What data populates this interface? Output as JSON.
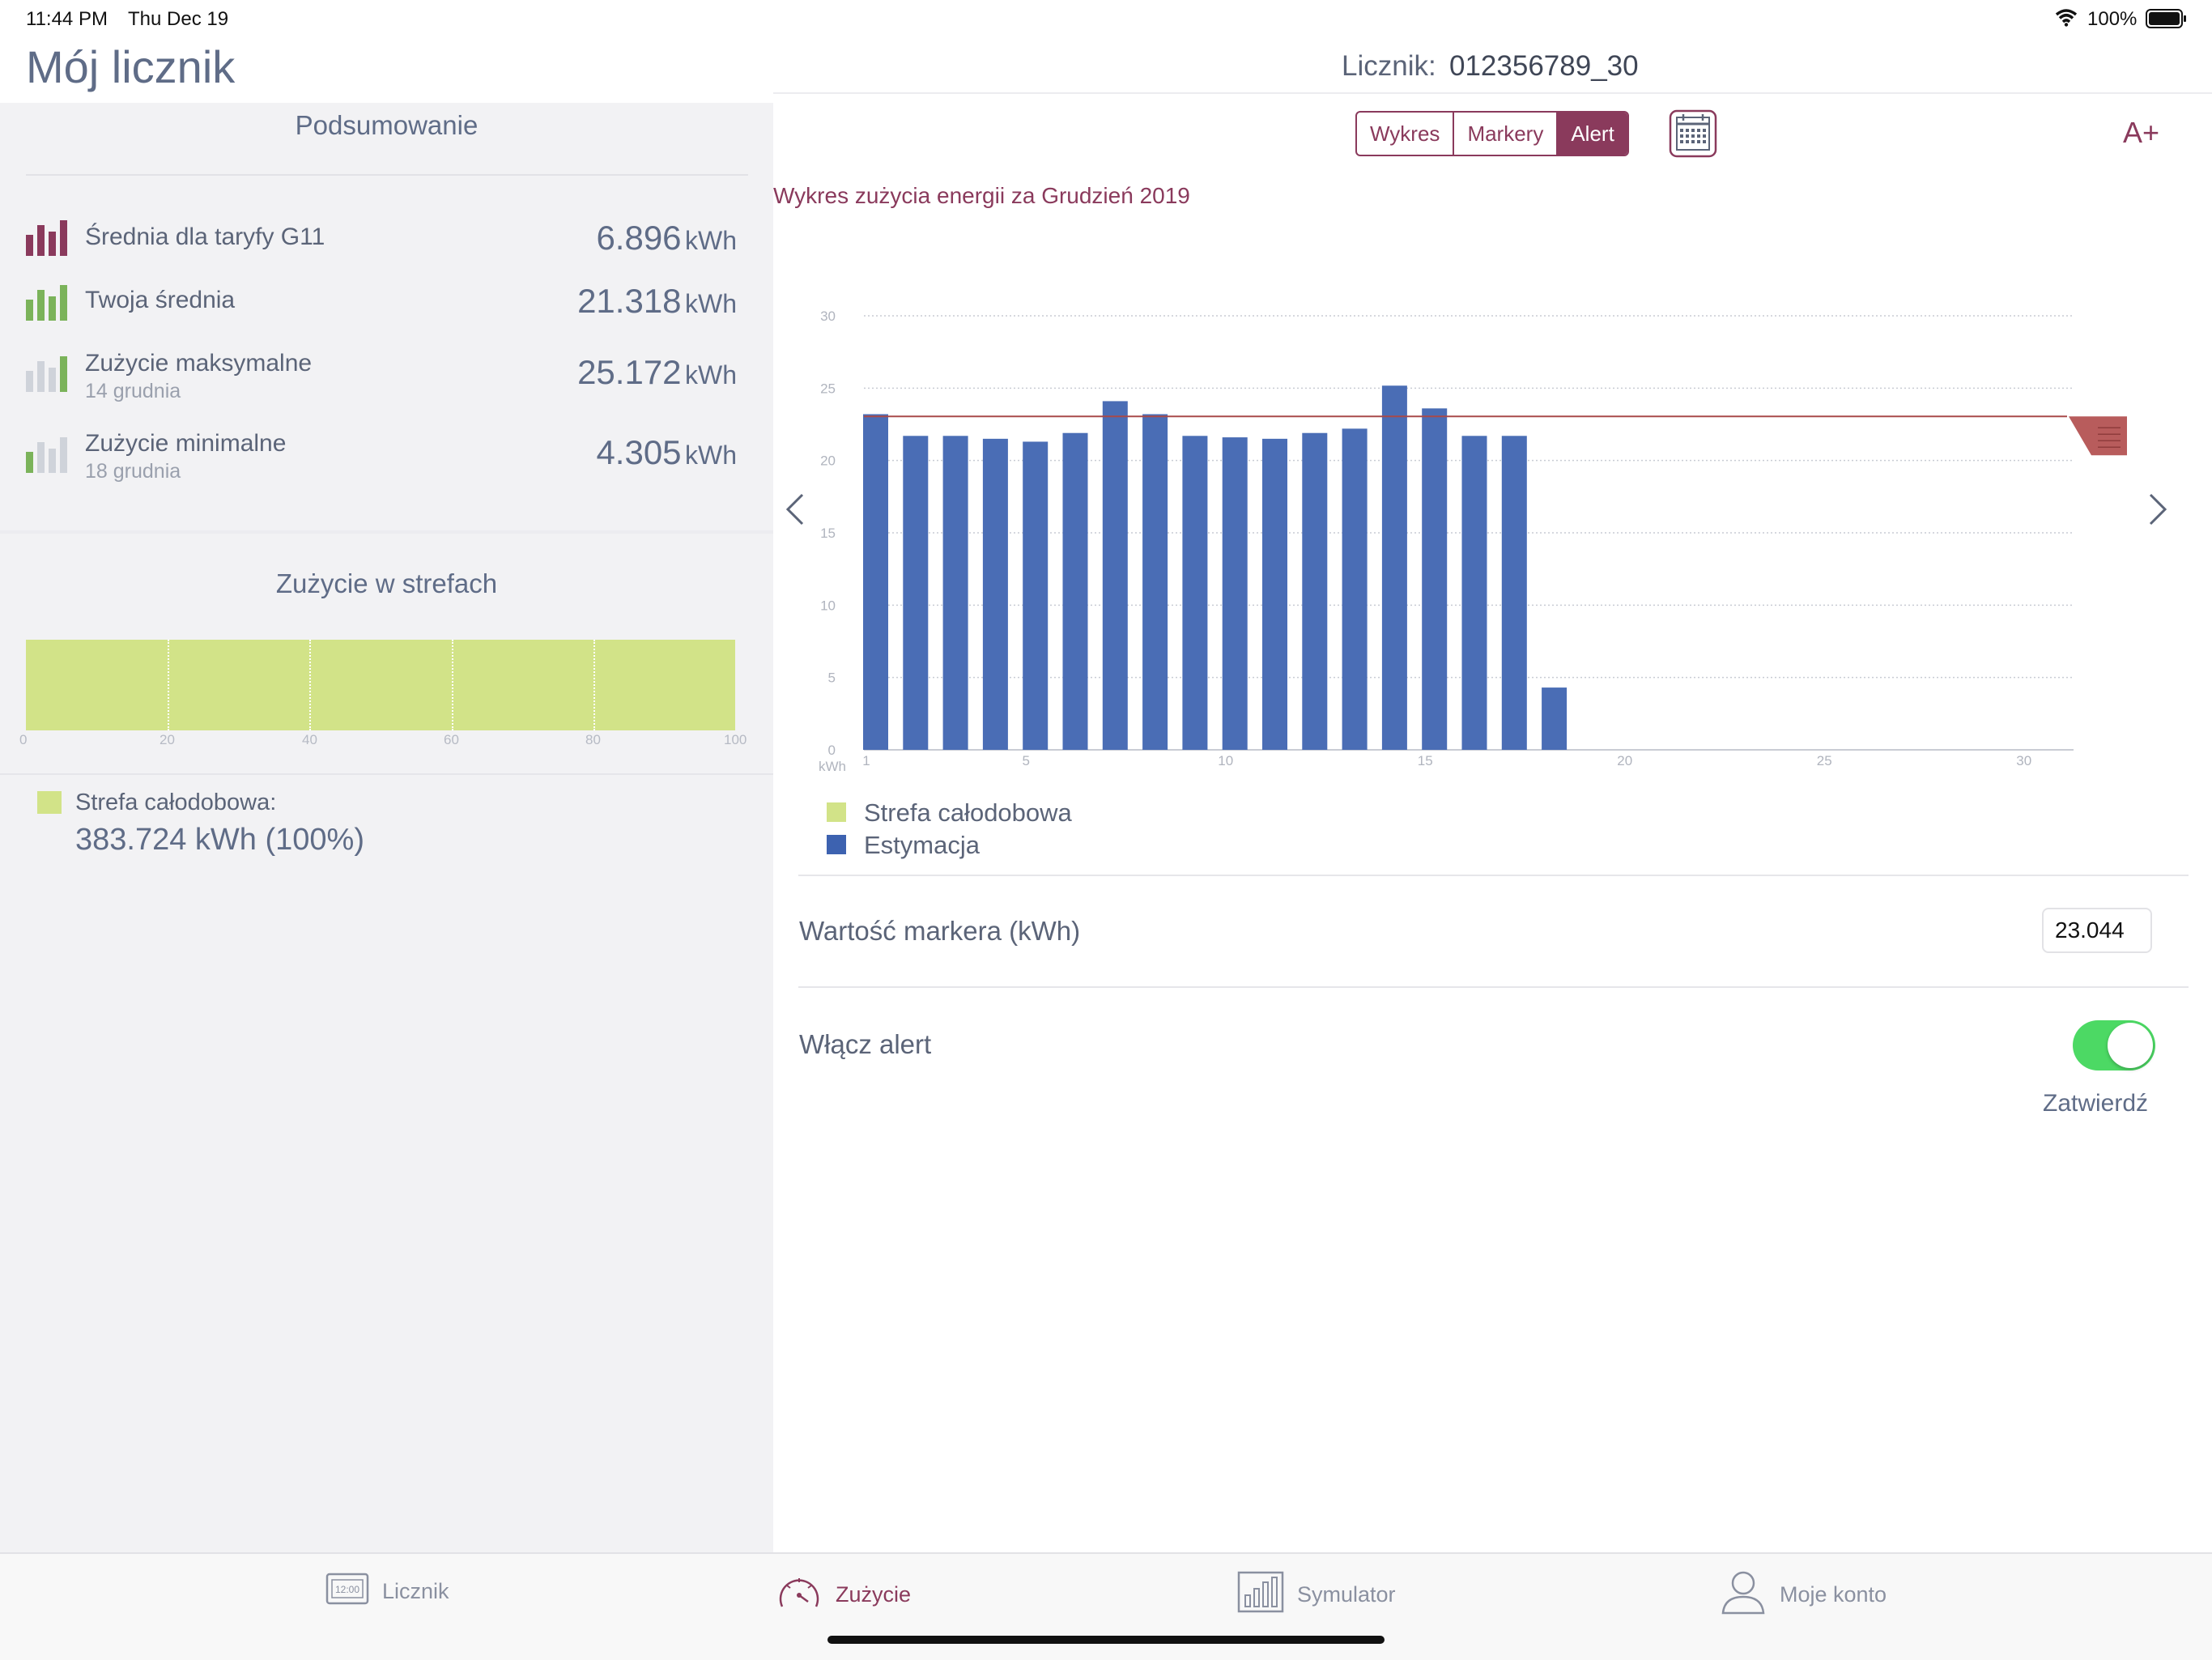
{
  "status_bar": {
    "time": "11:44 PM",
    "date": "Thu Dec 19",
    "battery": "100%"
  },
  "app": {
    "title": "Mój licznik"
  },
  "meter": {
    "label": "Licznik:",
    "number": "012356789_30"
  },
  "summary": {
    "title": "Podsumowanie",
    "items": [
      {
        "label": "Średnia dla taryfy G11",
        "sub": "",
        "value": "6.896",
        "unit": "kWh",
        "icon": "bar-chart-icon"
      },
      {
        "label": "Twoja średnia",
        "sub": "",
        "value": "21.318",
        "unit": "kWh",
        "icon": "bar-chart-icon"
      },
      {
        "label": "Zużycie maksymalne",
        "sub": "14 grudnia",
        "value": "25.172",
        "unit": "kWh",
        "icon": "bar-chart-icon"
      },
      {
        "label": "Zużycie minimalne",
        "sub": "18 grudnia",
        "value": "4.305",
        "unit": "kWh",
        "icon": "bar-chart-icon"
      }
    ]
  },
  "zones": {
    "title": "Zużycie w strefach",
    "ticks": [
      "0",
      "20",
      "40",
      "60",
      "80",
      "100"
    ],
    "fill_fraction": 1.0,
    "legend_label": "Strefa całodobowa:",
    "legend_value": "383.724 kWh (100%)"
  },
  "segment": {
    "options": [
      "Wykres",
      "Markery",
      "Alert"
    ],
    "selected": "Alert"
  },
  "font_size_button": "A+",
  "chart_data": {
    "type": "bar",
    "title": "Wykres zużycia energii za Grudzień 2019",
    "ylabel": "kWh",
    "ylim": [
      0,
      30
    ],
    "yticks": [
      0,
      5,
      10,
      15,
      20,
      25,
      30
    ],
    "xticks": [
      1,
      5,
      10,
      15,
      20,
      25,
      30
    ],
    "xlim": [
      1,
      31
    ],
    "days": [
      1,
      2,
      3,
      4,
      5,
      6,
      7,
      8,
      9,
      10,
      11,
      12,
      13,
      14,
      15,
      16,
      17,
      18
    ],
    "values": [
      23.2,
      21.7,
      21.7,
      21.5,
      21.3,
      21.9,
      24.1,
      23.2,
      21.7,
      21.6,
      21.5,
      21.9,
      22.2,
      25.172,
      23.6,
      21.7,
      21.7,
      4.305
    ],
    "marker": 23.044,
    "legend": [
      "Strefa całodobowa",
      "Estymacja"
    ]
  },
  "colors": {
    "accent": "#8a3a5c",
    "bar": "#4a6db5",
    "zone": "#d2e388",
    "toggle_on": "#4cd964"
  },
  "alert": {
    "marker_label": "Wartość markera (kWh)",
    "marker_value": "23.044",
    "enable_label": "Włącz alert",
    "enabled": true,
    "confirm_label": "Zatwierdź"
  },
  "tabs": [
    {
      "label": "Licznik",
      "icon": "meter-icon"
    },
    {
      "label": "Zużycie",
      "icon": "gauge-icon"
    },
    {
      "label": "Symulator",
      "icon": "simulator-chart-icon"
    },
    {
      "label": "Moje konto",
      "icon": "user-icon"
    }
  ],
  "active_tab": "Zużycie"
}
